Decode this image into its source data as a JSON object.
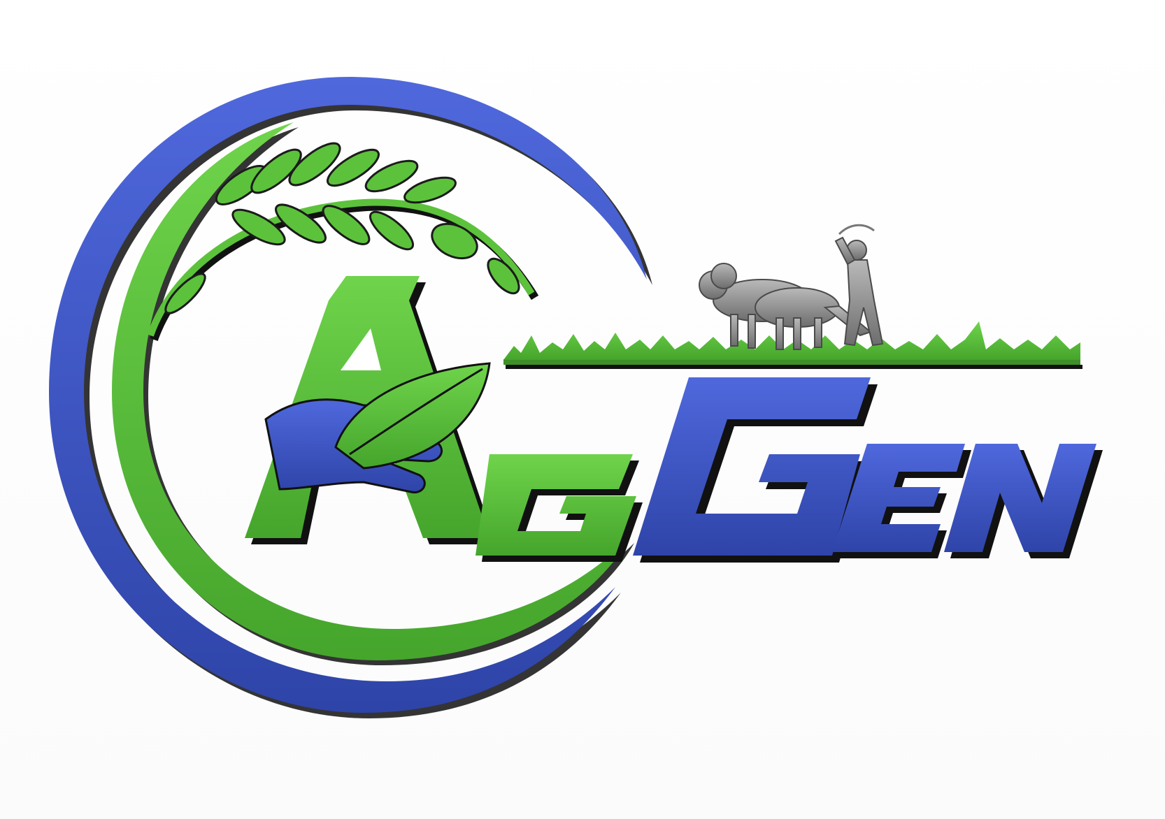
{
  "logo": {
    "wordmark": "AgGen",
    "letters": [
      "A",
      "G",
      "G",
      "EN"
    ],
    "colors": {
      "blue": "#3c55c8",
      "blue_dark": "#2a3f9e",
      "green": "#5cc23b",
      "green_dark": "#3f8f28",
      "shadow": "#111111",
      "ox_gray": "#8e8e8e"
    },
    "icons": [
      "crescent-ring-icon",
      "wheat-ear-icon",
      "hand-icon",
      "leaf-icon",
      "grass-field-icon",
      "plowing-farmer-icon"
    ]
  }
}
